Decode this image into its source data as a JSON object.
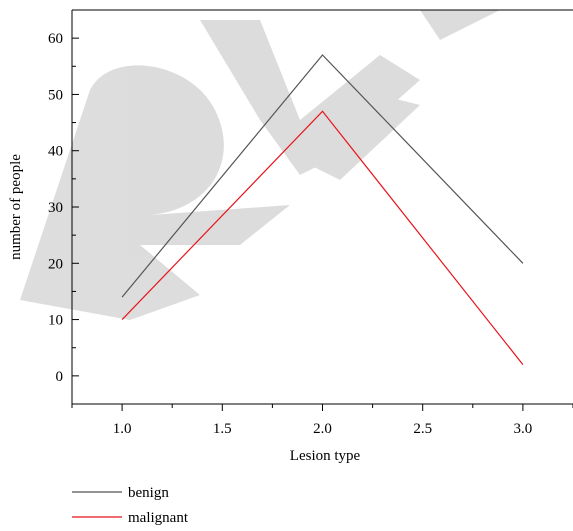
{
  "chart_data": {
    "type": "line",
    "title": "",
    "xlabel": "Lesion type",
    "ylabel": "number of people",
    "xlim": [
      0.75,
      3.25
    ],
    "ylim": [
      -5,
      65
    ],
    "xticks": [
      1.0,
      1.5,
      2.0,
      2.5,
      3.0
    ],
    "xtick_labels": [
      "1.0",
      "1.5",
      "2.0",
      "2.5",
      "3.0"
    ],
    "yticks": [
      0,
      10,
      20,
      30,
      40,
      50,
      60
    ],
    "ytick_labels": [
      "0",
      "10",
      "20",
      "30",
      "40",
      "50",
      "60"
    ],
    "x": [
      1.0,
      2.0,
      3.0
    ],
    "series": [
      {
        "name": "benign",
        "values": [
          14,
          57,
          20
        ],
        "color": "#555555"
      },
      {
        "name": "malignant",
        "values": [
          10,
          47,
          2
        ],
        "color": "#e8141b"
      }
    ],
    "grid": false,
    "legend_position": "bottom-left",
    "watermark_text": "RE"
  }
}
